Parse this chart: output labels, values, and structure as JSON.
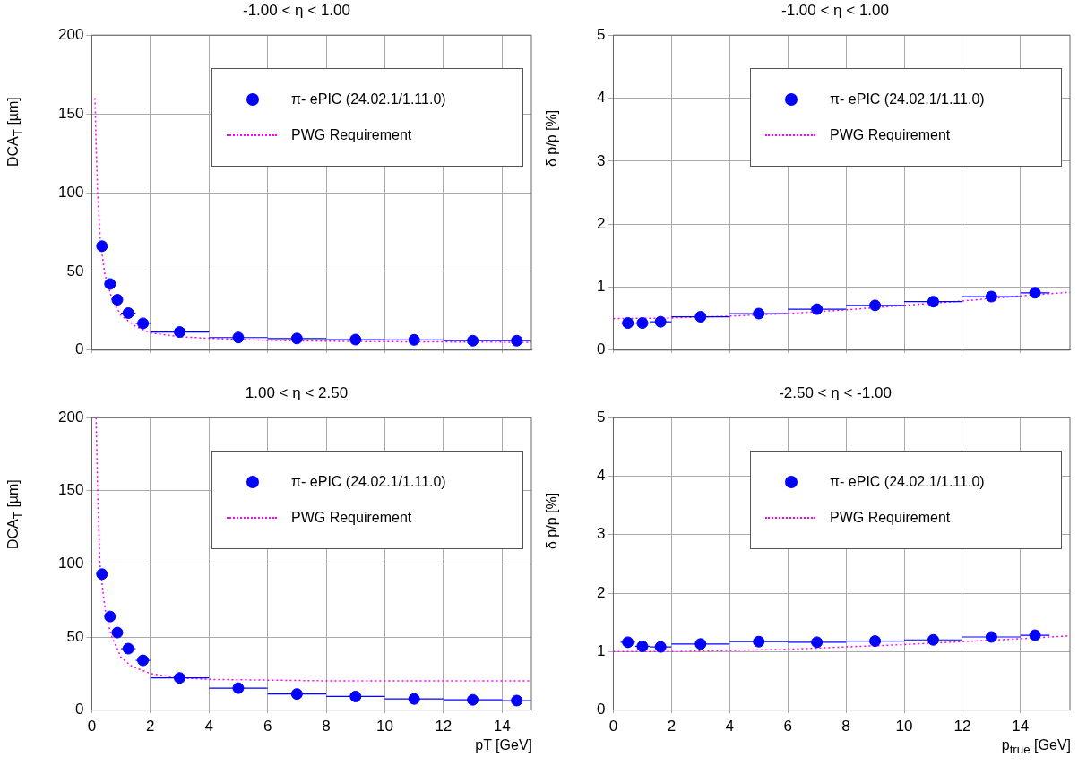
{
  "chart_data": [
    {
      "type": "scatter",
      "title": "-1.00 < η < 1.00",
      "ylabel": "DCA$_{T}$ [µm]",
      "xlim": [
        0,
        15
      ],
      "xticks": [
        0,
        2,
        4,
        6,
        8,
        10,
        12,
        14
      ],
      "ylim": [
        0,
        200
      ],
      "yticks": [
        0,
        50,
        100,
        150,
        200
      ],
      "tick_labels": "y",
      "grid": true,
      "legend": "top right",
      "series": [
        {
          "name": "π- ePIC (24.02.1/1.11.0)",
          "type": "scatter",
          "marker": "circle",
          "color": "#0000ff",
          "x": [
            0.35,
            0.625,
            0.875,
            1.25,
            1.75,
            3,
            5,
            7,
            9,
            11,
            13,
            14.5
          ],
          "values": [
            66,
            42,
            32,
            23.5,
            17,
            11.5,
            8,
            7.4,
            6.7,
            6.5,
            6,
            6
          ],
          "xerrors": [
            0.15,
            0.125,
            0.125,
            0.25,
            0.25,
            1,
            1,
            1,
            1,
            1,
            1,
            0.5
          ]
        },
        {
          "name": "PWG Requirement",
          "type": "line",
          "marker": "none",
          "line_style": "dotted",
          "color": "#ff00ff",
          "x": [
            0.11,
            0.15,
            0.2,
            0.3,
            0.45,
            0.7,
            1,
            1.5,
            2,
            3,
            4,
            6,
            8,
            10,
            15
          ],
          "values": [
            160,
            130,
            100,
            68,
            48,
            32,
            22,
            15,
            11,
            8.5,
            7.5,
            6.2,
            5.7,
            5.4,
            5
          ]
        }
      ]
    },
    {
      "type": "scatter",
      "title": "-1.00 < η < 1.00",
      "ylabel": "δ p/p [%]",
      "xlim": [
        0,
        15.7
      ],
      "xticks": [
        0,
        2,
        4,
        6,
        8,
        10,
        12,
        14
      ],
      "ylim": [
        0,
        5
      ],
      "yticks": [
        0,
        1,
        2,
        3,
        4,
        5
      ],
      "tick_labels": "y",
      "grid": true,
      "legend": "top right",
      "series": [
        {
          "name": "π- ePIC (24.02.1/1.11.0)",
          "type": "scatter",
          "marker": "circle",
          "color": "#0000ff",
          "x": [
            0.5,
            1,
            1.625,
            3,
            5,
            7,
            9,
            11,
            13,
            14.5
          ],
          "values": [
            0.43,
            0.43,
            0.45,
            0.53,
            0.58,
            0.65,
            0.71,
            0.77,
            0.85,
            0.91
          ],
          "xerrors": [
            0.25,
            0.25,
            0.375,
            1,
            1,
            1,
            1,
            1,
            1,
            0.5
          ]
        },
        {
          "name": "PWG Requirement",
          "type": "line",
          "marker": "none",
          "line_style": "dotted",
          "color": "#ff00ff",
          "x": [
            0,
            2,
            4,
            6,
            8,
            10,
            12,
            14,
            15.7
          ],
          "values": [
            0.5,
            0.51,
            0.54,
            0.58,
            0.64,
            0.71,
            0.78,
            0.86,
            0.92
          ]
        }
      ]
    },
    {
      "type": "scatter",
      "title": "1.00 < η < 2.50",
      "xlabel": "pT [GeV]",
      "ylabel": "DCA$_{T}$ [µm]",
      "xlim": [
        0,
        15
      ],
      "xticks": [
        0,
        2,
        4,
        6,
        8,
        10,
        12,
        14
      ],
      "ylim": [
        0,
        200
      ],
      "yticks": [
        0,
        50,
        100,
        150,
        200
      ],
      "grid": true,
      "legend": "top right",
      "series": [
        {
          "name": "π- ePIC (24.02.1/1.11.0)",
          "type": "scatter",
          "marker": "circle",
          "color": "#0000ff",
          "x": [
            0.35,
            0.625,
            0.875,
            1.25,
            1.75,
            3,
            5,
            7,
            9,
            11,
            13,
            14.5
          ],
          "values": [
            93,
            64,
            53,
            42,
            34,
            22,
            15,
            11,
            9.3,
            7.6,
            7,
            6.5
          ],
          "xerrors": [
            0.15,
            0.125,
            0.125,
            0.25,
            0.25,
            1,
            1,
            1,
            1,
            1,
            1,
            0.5
          ]
        },
        {
          "name": "PWG Requirement",
          "type": "line",
          "marker": "none",
          "line_style": "dotted",
          "color": "#ff00ff",
          "x": [
            0.15,
            0.2,
            0.28,
            0.4,
            0.5,
            0.69,
            1,
            1.36,
            2,
            3,
            4,
            6,
            8,
            10,
            15
          ],
          "values": [
            200,
            151,
            100,
            78,
            63,
            50,
            36,
            30,
            25,
            22,
            21,
            20.5,
            20,
            20,
            20
          ]
        }
      ]
    },
    {
      "type": "scatter",
      "title": "-2.50 < η < -1.00",
      "xlabel": "p$_{true}$ [GeV]",
      "ylabel": "δ p/p [%]",
      "xlim": [
        0,
        15.7
      ],
      "xticks": [
        0,
        2,
        4,
        6,
        8,
        10,
        12,
        14
      ],
      "ylim": [
        0,
        5
      ],
      "yticks": [
        0,
        1,
        2,
        3,
        4,
        5
      ],
      "grid": true,
      "legend": "top right",
      "series": [
        {
          "name": "π- ePIC (24.02.1/1.11.0)",
          "type": "scatter",
          "marker": "circle",
          "color": "#0000ff",
          "x": [
            0.5,
            1,
            1.625,
            3,
            5,
            7,
            9,
            11,
            13,
            14.5
          ],
          "values": [
            1.16,
            1.09,
            1.08,
            1.13,
            1.17,
            1.16,
            1.18,
            1.2,
            1.25,
            1.28
          ],
          "xerrors": [
            0.25,
            0.25,
            0.375,
            1,
            1,
            1,
            1,
            1,
            1,
            0.5
          ]
        },
        {
          "name": "PWG Requirement",
          "type": "line",
          "marker": "none",
          "line_style": "dotted",
          "color": "#ff00ff",
          "x": [
            0,
            2,
            4,
            6,
            8,
            10,
            12,
            14,
            15.7
          ],
          "values": [
            1.0,
            1.0,
            1.02,
            1.04,
            1.08,
            1.12,
            1.17,
            1.22,
            1.27
          ]
        }
      ]
    }
  ]
}
